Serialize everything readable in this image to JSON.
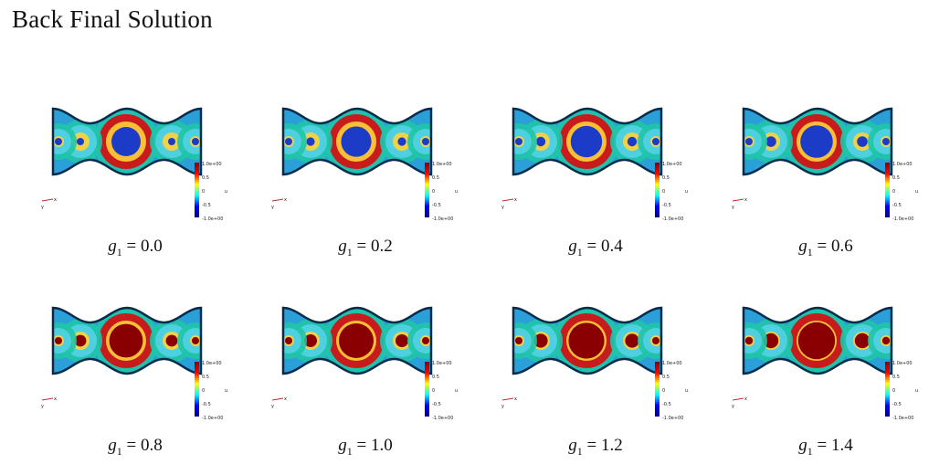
{
  "title": "Back Final Solution",
  "colorbar": {
    "max_label": "1.0e+00",
    "ticks": [
      "0.5",
      "0",
      "-0.5"
    ],
    "min_label": "-1.0e+00",
    "var_label": "u"
  },
  "axes_glyph": {
    "x": "x",
    "y": "y"
  },
  "panels": [
    {
      "var": "g",
      "sub": "1",
      "eq": " = ",
      "value": "0.0",
      "g1": 0.0
    },
    {
      "var": "g",
      "sub": "1",
      "eq": " = ",
      "value": "0.2",
      "g1": 0.2
    },
    {
      "var": "g",
      "sub": "1",
      "eq": " = ",
      "value": "0.4",
      "g1": 0.4
    },
    {
      "var": "g",
      "sub": "1",
      "eq": " = ",
      "value": "0.6",
      "g1": 0.6
    },
    {
      "var": "g",
      "sub": "1",
      "eq": " = ",
      "value": "0.8",
      "g1": 0.8
    },
    {
      "var": "g",
      "sub": "1",
      "eq": " = ",
      "value": "1.0",
      "g1": 1.0
    },
    {
      "var": "g",
      "sub": "1",
      "eq": " = ",
      "value": "1.2",
      "g1": 1.2
    },
    {
      "var": "g",
      "sub": "1",
      "eq": " = ",
      "value": "1.4",
      "g1": 1.4
    }
  ],
  "colors": {
    "jet": [
      "#00008f",
      "#0000ff",
      "#00ffff",
      "#ffff00",
      "#ff0000",
      "#800000"
    ]
  }
}
